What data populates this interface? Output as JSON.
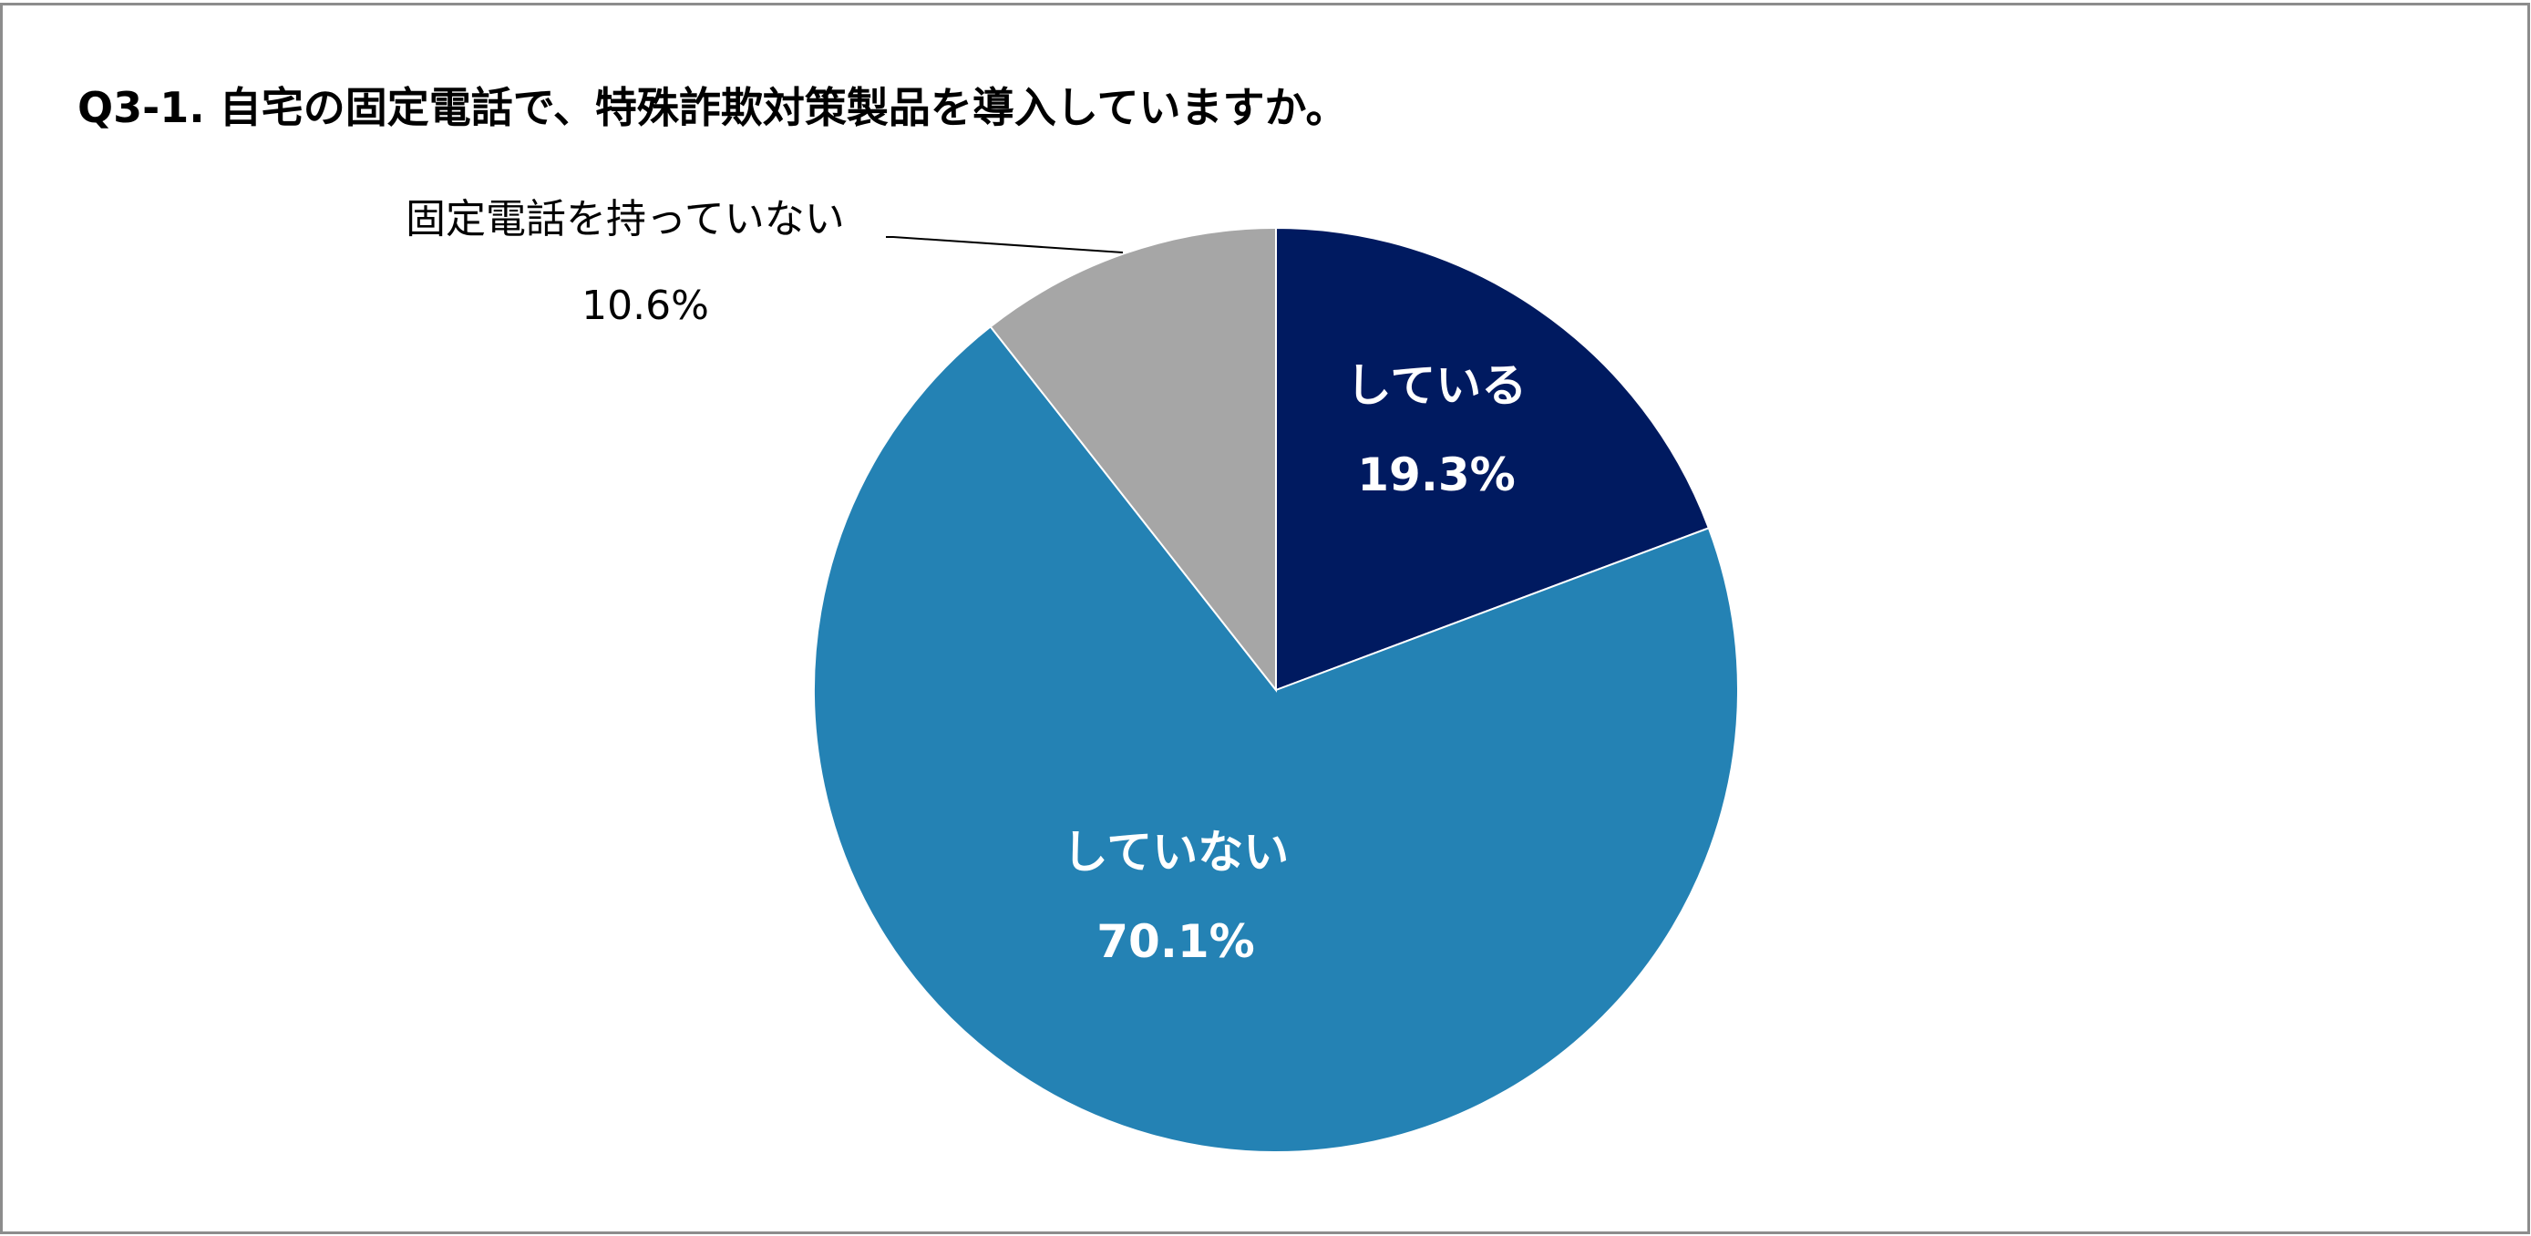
{
  "chart_data": {
    "type": "pie",
    "title": "Q3-1. 自宅の固定電話で、特殊詐欺対策製品を導入していますか。",
    "slices": [
      {
        "label": "している",
        "value": 19.3,
        "value_label": "19.3%",
        "color": "#001A60",
        "label_inside": true
      },
      {
        "label": "していない",
        "value": 70.1,
        "value_label": "70.1%",
        "color": "#2482B4",
        "label_inside": true
      },
      {
        "label": "固定電話を持っていない",
        "value": 10.6,
        "value_label": "10.6%",
        "color": "#A6A6A6",
        "label_inside": false
      }
    ],
    "start_angle": "12 o'clock",
    "direction": "clockwise",
    "legend": "none",
    "border_color": "#8C8C8C"
  }
}
